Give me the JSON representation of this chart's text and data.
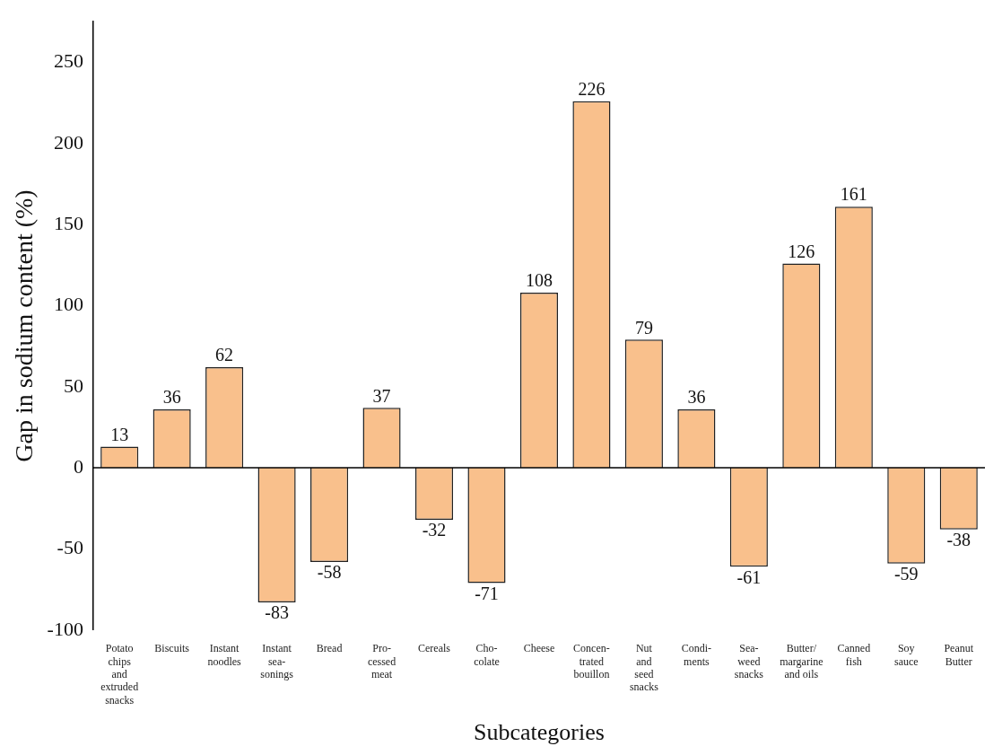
{
  "chart_data": {
    "type": "bar",
    "xlabel": "Subcategories",
    "ylabel": "Gap in sodium content (%)",
    "categories": [
      "Potato\nchips\nand\nextruded\nsnacks",
      "Biscuits",
      "Instant\nnoodles",
      "Instant\nsea-\nsonings",
      "Bread",
      "Pro-\ncessed\nmeat",
      "Cereals",
      "Cho-\ncolate",
      "Cheese",
      "Concen-\ntrated\nbouillon",
      "Nut\nand\nseed\nsnacks",
      "Condi-\nments",
      "Sea-\nweed\nsnacks",
      "Butter/\nmargarine\nand oils",
      "Canned\nfish",
      "Soy\nsauce",
      "Peanut\nButter"
    ],
    "values": [
      13,
      36,
      62,
      -83,
      -58,
      37,
      -32,
      -71,
      108,
      226,
      79,
      36,
      -61,
      126,
      161,
      -59,
      -38
    ],
    "color": "#f9c08c",
    "ylim": [
      -100,
      275
    ],
    "yticks": [
      -100,
      -50,
      0,
      50,
      100,
      150,
      200,
      250
    ],
    "data_labels": true
  }
}
